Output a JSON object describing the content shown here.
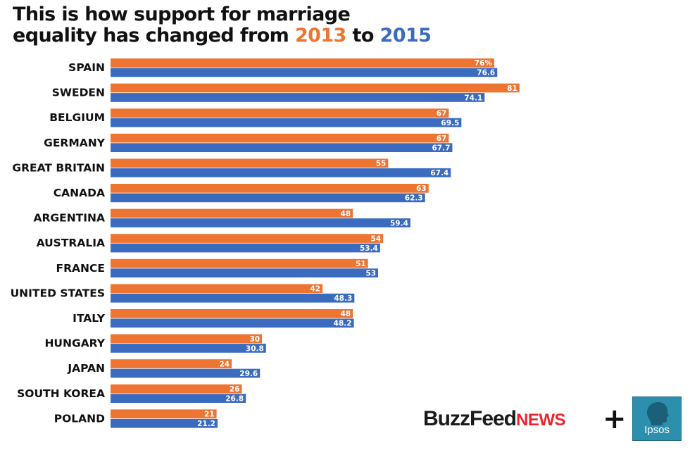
{
  "header": {
    "title_line1": "This is how support for marriage",
    "title_line2_prefix": "equality has changed from ",
    "year_a": "2013",
    "title_joiner": " to ",
    "year_b": "2015"
  },
  "colors": {
    "year_a": "#ee7431",
    "year_b": "#3a6bbf"
  },
  "chart_data": {
    "type": "bar",
    "orientation": "horizontal",
    "categories": [
      "SPAIN",
      "SWEDEN",
      "BELGIUM",
      "GERMANY",
      "GREAT BRITAIN",
      "CANADA",
      "ARGENTINA",
      "AUSTRALIA",
      "FRANCE",
      "UNITED STATES",
      "ITALY",
      "HUNGARY",
      "JAPAN",
      "SOUTH KOREA",
      "POLAND"
    ],
    "series": [
      {
        "name": "2013",
        "color": "#ee7431",
        "values": [
          76,
          81,
          67,
          67,
          55,
          63,
          48,
          54,
          51,
          42,
          48,
          30,
          24,
          26,
          21
        ],
        "labels": [
          "76%",
          "81",
          "67",
          "67",
          "55",
          "63",
          "48",
          "54",
          "51",
          "42",
          "48",
          "30",
          "24",
          "26",
          "21"
        ]
      },
      {
        "name": "2015",
        "color": "#3a6bbf",
        "values": [
          76.6,
          74.1,
          69.5,
          67.7,
          67.4,
          62.3,
          59.4,
          53.4,
          53,
          48.3,
          48.2,
          30.8,
          29.6,
          26.8,
          21.2
        ],
        "labels": [
          "76.6",
          "74.1",
          "69.5",
          "67.7",
          "67.4",
          "62.3",
          "59.4",
          "53.4",
          "53",
          "48.3",
          "48.2",
          "30.8",
          "29.6",
          "26.8",
          "21.2"
        ]
      }
    ],
    "xlim": [
      0,
      81
    ],
    "grid": false,
    "legend": "none"
  },
  "footer": {
    "brand_main": "BuzzFeed",
    "brand_news": "NEWS",
    "plus": "+",
    "partner": "Ipsos"
  }
}
